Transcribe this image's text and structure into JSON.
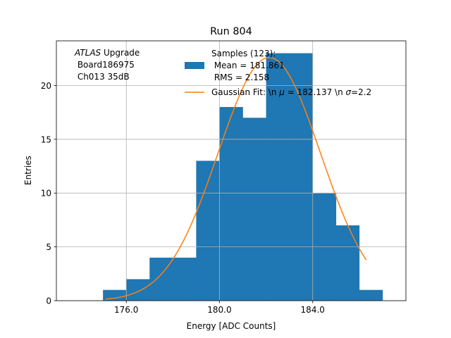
{
  "chart_data": {
    "type": "bar",
    "title": "Run 804",
    "xlabel": "Energy [ADC Counts]",
    "ylabel": "Entries",
    "xlim": [
      173.0,
      188.0
    ],
    "ylim": [
      0,
      24.15
    ],
    "grid": true,
    "x_ticks": [
      176.0,
      180.0,
      184.0
    ],
    "x_tick_labels": [
      "176.0",
      "180.0",
      "184.0"
    ],
    "y_ticks": [
      0,
      5,
      10,
      15,
      20
    ],
    "y_tick_labels": [
      "0",
      "5",
      "10",
      "15",
      "20"
    ],
    "histogram": {
      "name": "Samples (123):\n Mean = 181.861\n RMS = 2.158",
      "color": "#1f77b4",
      "bins": [
        {
          "x0": 175,
          "x1": 176,
          "count": 1
        },
        {
          "x0": 176,
          "x1": 177,
          "count": 2
        },
        {
          "x0": 177,
          "x1": 178,
          "count": 4
        },
        {
          "x0": 178,
          "x1": 179,
          "count": 4
        },
        {
          "x0": 179,
          "x1": 180,
          "count": 13
        },
        {
          "x0": 180,
          "x1": 181,
          "count": 18
        },
        {
          "x0": 181,
          "x1": 182,
          "count": 17
        },
        {
          "x0": 182,
          "x1": 183,
          "count": 23
        },
        {
          "x0": 183,
          "x1": 184,
          "count": 23
        },
        {
          "x0": 184,
          "x1": 185,
          "count": 10
        },
        {
          "x0": 185,
          "x1": 186,
          "count": 7
        },
        {
          "x0": 186,
          "x1": 187,
          "count": 1
        }
      ]
    },
    "fit": {
      "name": "Gaussian Fit: \\n $\\mu$ = 182.137 \\n $\\sigma$=2.2",
      "color": "#ff7f0e",
      "amplitude": 22.6,
      "mu": 182.137,
      "sigma": 2.2,
      "x_range": [
        175.1,
        186.3
      ]
    },
    "annotation": {
      "lines": [
        "ATLAS Upgrade",
        " Board186975",
        " Ch013 35dB"
      ],
      "italic_word": "ATLAS",
      "rest_first_line": " Upgrade"
    },
    "legend": {
      "placement": "top-right",
      "entries": [
        {
          "lines": [
            "Samples (123):",
            " Mean = 181.861",
            " RMS = 2.158"
          ]
        },
        {
          "lines": [
            "Gaussian Fit: \\n ",
            "μ",
            " = 182.137 \\n ",
            "σ",
            "=2.2"
          ]
        }
      ]
    }
  }
}
